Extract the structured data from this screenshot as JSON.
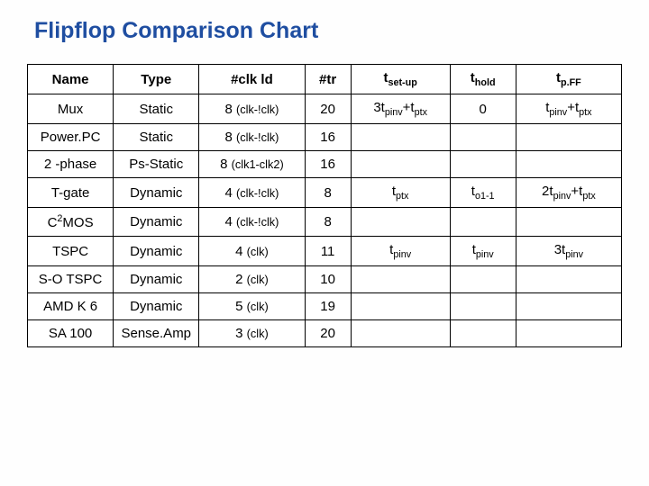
{
  "title": "Flipflop Comparison Chart",
  "headers": {
    "name": "Name",
    "type": "Type",
    "clkld": "#clk ld",
    "tr": "#tr",
    "setup_prefix": "t",
    "setup_sub": "set-up",
    "hold_prefix": "t",
    "hold_sub": "hold",
    "pff_prefix": "t",
    "pff_sub": "p.FF"
  },
  "rows": {
    "r0": {
      "name": "Mux",
      "type": "Static",
      "clk_n": "8 ",
      "clk_paren": "(clk-!clk)",
      "tr": "20",
      "setup_a": "3t",
      "setup_as": "pinv",
      "setup_b": "+t",
      "setup_bs": "ptx",
      "hold": "0",
      "pff_a": "t",
      "pff_as": "pinv",
      "pff_b": "+t",
      "pff_bs": "ptx"
    },
    "r1": {
      "name": "Power.PC",
      "type": "Static",
      "clk_n": "8 ",
      "clk_paren": "(clk-!clk)",
      "tr": "16"
    },
    "r2": {
      "name": "2 -phase",
      "type": "Ps-Static",
      "clk_n": "8 ",
      "clk_paren": "(clk1-clk2)",
      "tr": "16"
    },
    "r3": {
      "name": "T-gate",
      "type": "Dynamic",
      "clk_n": "4 ",
      "clk_paren": "(clk-!clk)",
      "tr": "8",
      "setup_a": "t",
      "setup_as": "ptx",
      "hold_a": "t",
      "hold_as": "o1-1",
      "pff_a": "2t",
      "pff_as": "pinv",
      "pff_b": "+t",
      "pff_bs": "ptx"
    },
    "r4": {
      "name_pre": "C",
      "name_sup": "2",
      "name_post": "MOS",
      "type": "Dynamic",
      "clk_n": "4 ",
      "clk_paren": "(clk-!clk)",
      "tr": "8"
    },
    "r5": {
      "name": "TSPC",
      "type": "Dynamic",
      "clk_n": "4 ",
      "clk_paren": "(clk)",
      "tr": "11",
      "setup_a": "t",
      "setup_as": "pinv",
      "hold_a": "t",
      "hold_as": "pinv",
      "pff_a": "3t",
      "pff_as": "pinv"
    },
    "r6": {
      "name": "S-O TSPC",
      "type": "Dynamic",
      "clk_n": "2 ",
      "clk_paren": "(clk)",
      "tr": "10"
    },
    "r7": {
      "name": "AMD K 6",
      "type": "Dynamic",
      "clk_n": "5 ",
      "clk_paren": "(clk)",
      "tr": "19"
    },
    "r8": {
      "name": "SA 100",
      "type": "Sense.Amp",
      "clk_n": "3 ",
      "clk_paren": "(clk)",
      "tr": "20"
    }
  }
}
